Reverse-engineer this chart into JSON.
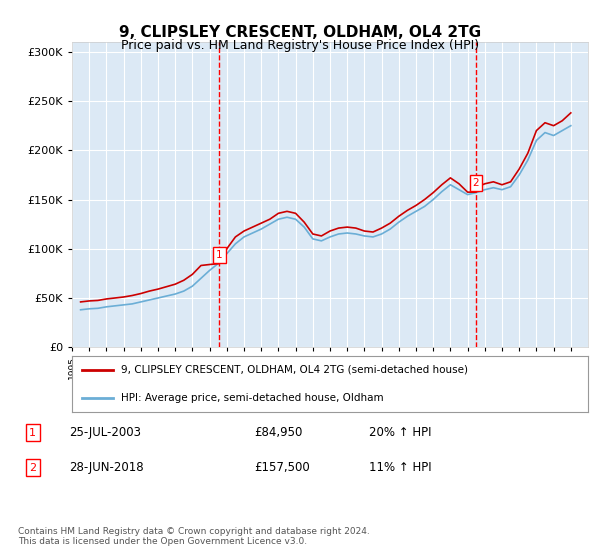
{
  "title": "9, CLIPSLEY CRESCENT, OLDHAM, OL4 2TG",
  "subtitle": "Price paid vs. HM Land Registry's House Price Index (HPI)",
  "bg_color": "#dce9f5",
  "plot_bg_color": "#dce9f5",
  "red_line_label": "9, CLIPSLEY CRESCENT, OLDHAM, OL4 2TG (semi-detached house)",
  "blue_line_label": "HPI: Average price, semi-detached house, Oldham",
  "footer": "Contains HM Land Registry data © Crown copyright and database right 2024.\nThis data is licensed under the Open Government Licence v3.0.",
  "sale1": {
    "label": "1",
    "date": "25-JUL-2003",
    "price": "£84,950",
    "pct": "20% ↑ HPI",
    "year": 2003.57
  },
  "sale2": {
    "label": "2",
    "date": "28-JUN-2018",
    "price": "£157,500",
    "pct": "11% ↑ HPI",
    "year": 2018.49
  },
  "ylim": [
    0,
    310000
  ],
  "yticks": [
    0,
    50000,
    100000,
    150000,
    200000,
    250000,
    300000
  ],
  "ytick_labels": [
    "£0",
    "£50K",
    "£100K",
    "£150K",
    "£200K",
    "£250K",
    "£300K"
  ],
  "xmin": 1995,
  "xmax": 2025,
  "hpi_data": {
    "years": [
      1995.5,
      1996.0,
      1996.5,
      1997.0,
      1997.5,
      1998.0,
      1998.5,
      1999.0,
      1999.5,
      2000.0,
      2000.5,
      2001.0,
      2001.5,
      2002.0,
      2002.5,
      2003.0,
      2003.5,
      2004.0,
      2004.5,
      2005.0,
      2005.5,
      2006.0,
      2006.5,
      2007.0,
      2007.5,
      2008.0,
      2008.5,
      2009.0,
      2009.5,
      2010.0,
      2010.5,
      2011.0,
      2011.5,
      2012.0,
      2012.5,
      2013.0,
      2013.5,
      2014.0,
      2014.5,
      2015.0,
      2015.5,
      2016.0,
      2016.5,
      2017.0,
      2017.5,
      2018.0,
      2018.5,
      2019.0,
      2019.5,
      2020.0,
      2020.5,
      2021.0,
      2021.5,
      2022.0,
      2022.5,
      2023.0,
      2023.5,
      2024.0
    ],
    "values": [
      38000,
      39000,
      39500,
      41000,
      42000,
      43000,
      44000,
      46000,
      48000,
      50000,
      52000,
      54000,
      57000,
      62000,
      70000,
      78000,
      85000,
      95000,
      105000,
      112000,
      116000,
      120000,
      125000,
      130000,
      132000,
      130000,
      122000,
      110000,
      108000,
      112000,
      115000,
      116000,
      115000,
      113000,
      112000,
      115000,
      120000,
      127000,
      133000,
      138000,
      143000,
      150000,
      158000,
      165000,
      160000,
      155000,
      157000,
      160000,
      162000,
      160000,
      163000,
      175000,
      190000,
      210000,
      218000,
      215000,
      220000,
      225000
    ]
  },
  "red_data": {
    "years": [
      1995.5,
      1996.0,
      1996.5,
      1997.0,
      1997.5,
      1998.0,
      1998.5,
      1999.0,
      1999.5,
      2000.0,
      2000.5,
      2001.0,
      2001.5,
      2002.0,
      2002.5,
      2003.0,
      2003.57,
      2003.6,
      2004.0,
      2004.5,
      2005.0,
      2005.5,
      2006.0,
      2006.5,
      2007.0,
      2007.5,
      2008.0,
      2008.5,
      2009.0,
      2009.5,
      2010.0,
      2010.5,
      2011.0,
      2011.5,
      2012.0,
      2012.5,
      2013.0,
      2013.5,
      2014.0,
      2014.5,
      2015.0,
      2015.5,
      2016.0,
      2016.5,
      2017.0,
      2017.5,
      2018.0,
      2018.49,
      2018.6,
      2019.0,
      2019.5,
      2020.0,
      2020.5,
      2021.0,
      2021.5,
      2022.0,
      2022.5,
      2023.0,
      2023.5,
      2024.0
    ],
    "values": [
      46000,
      47000,
      47500,
      49000,
      50000,
      51000,
      52500,
      54500,
      57000,
      59000,
      61500,
      64000,
      68000,
      74000,
      83000,
      84000,
      84950,
      85500,
      100000,
      112000,
      118000,
      122000,
      126000,
      130000,
      136000,
      138000,
      136000,
      127000,
      115000,
      113000,
      118000,
      121000,
      122000,
      121000,
      118000,
      117000,
      121000,
      126000,
      133000,
      139000,
      144000,
      150000,
      157000,
      165000,
      172000,
      166000,
      157500,
      157500,
      163000,
      166000,
      168000,
      165000,
      168000,
      181000,
      197000,
      220000,
      228000,
      225000,
      230000,
      238000
    ]
  }
}
